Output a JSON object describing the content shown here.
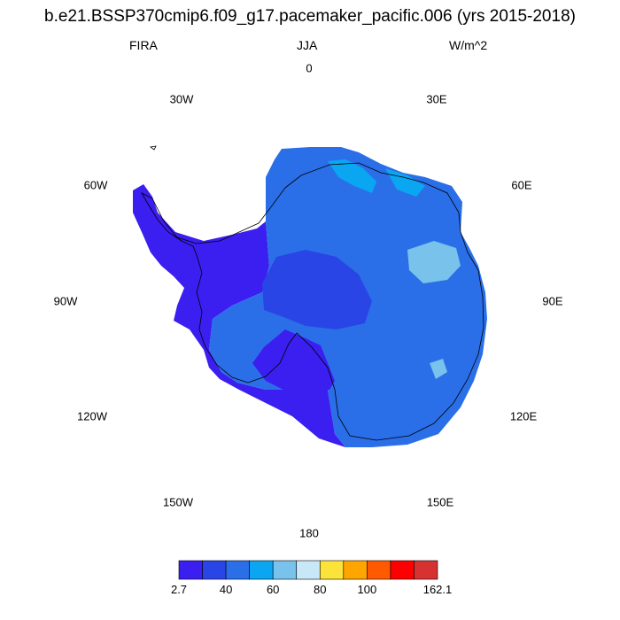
{
  "title": "b.e21.BSSP370cmip6.f09_g17.pacemaker_pacific.006 (yrs 2015-2018)",
  "left_label": "FIRA",
  "center_label": "JJA",
  "right_label": "W/m^2",
  "longitude_labels": {
    "n0": "0",
    "n30e": "30E",
    "n60e": "60E",
    "n90e": "90E",
    "n120e": "120E",
    "n150e": "150E",
    "n180": "180",
    "n150w": "150W",
    "n120w": "120W",
    "n90w": "90W",
    "n60w": "60W",
    "n30w": "30W"
  },
  "colorbar": {
    "colors": [
      "#3b1ef0",
      "#2a45e6",
      "#2a6fe8",
      "#0aa6f2",
      "#78c2ec",
      "#c8e8f8",
      "#fce33a",
      "#ffa500",
      "#ff5a00",
      "#ff0000",
      "#d63232"
    ],
    "labels": [
      "2.7",
      "40",
      "60",
      "80",
      "100",
      "162.1"
    ]
  },
  "map_colors": {
    "low": "#3b1ef0",
    "mid": "#2a6fe8",
    "mid_dark": "#2a45e6",
    "light": "#0aa6f2",
    "lighter": "#78c2ec",
    "coast": "#000000"
  }
}
